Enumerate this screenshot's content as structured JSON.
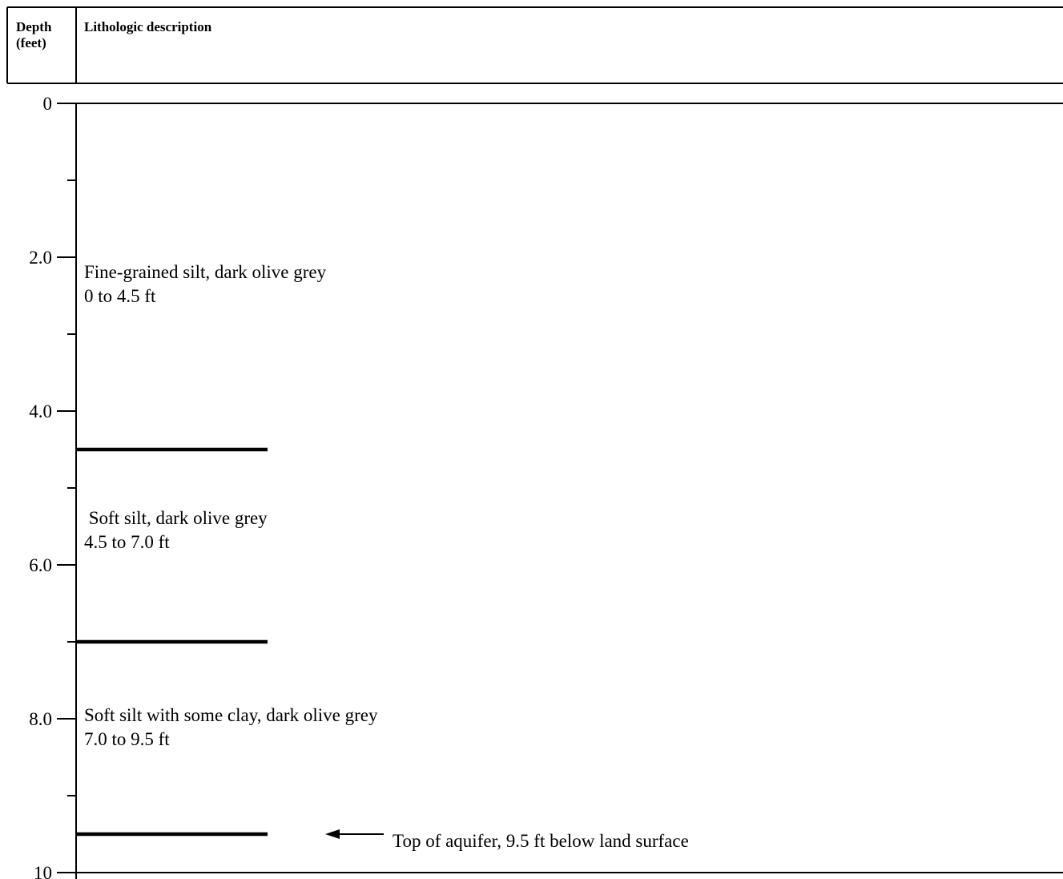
{
  "header": {
    "depth_line1": "Depth",
    "depth_line2": "(feet)",
    "description_label": "Lithologic description"
  },
  "depth_axis": {
    "min": 0,
    "max": 10,
    "major_ticks": [
      0,
      2,
      4,
      6,
      8,
      10
    ],
    "minor_ticks": [
      1,
      3,
      5,
      7,
      9
    ],
    "tick_labels": [
      "0",
      "2.0",
      "4.0",
      "6.0",
      "8.0",
      "10"
    ]
  },
  "units": [
    {
      "top": 0,
      "bottom": 4.5,
      "description": "Fine-grained silt, dark olive grey",
      "range": "0 to 4.5 ft"
    },
    {
      "top": 4.5,
      "bottom": 7.0,
      "description": " Soft silt, dark olive grey",
      "range": "4.5 to 7.0 ft"
    },
    {
      "top": 7.0,
      "bottom": 9.5,
      "description": "Soft silt with some clay, dark olive grey",
      "range": "7.0 to 9.5 ft"
    }
  ],
  "contacts": [
    4.5,
    7.0,
    9.5
  ],
  "annotation": {
    "depth": 9.5,
    "text": "Top of aquifer, 9.5 ft below land surface"
  },
  "colors": {
    "line": "#000000",
    "background": "#ffffff"
  }
}
